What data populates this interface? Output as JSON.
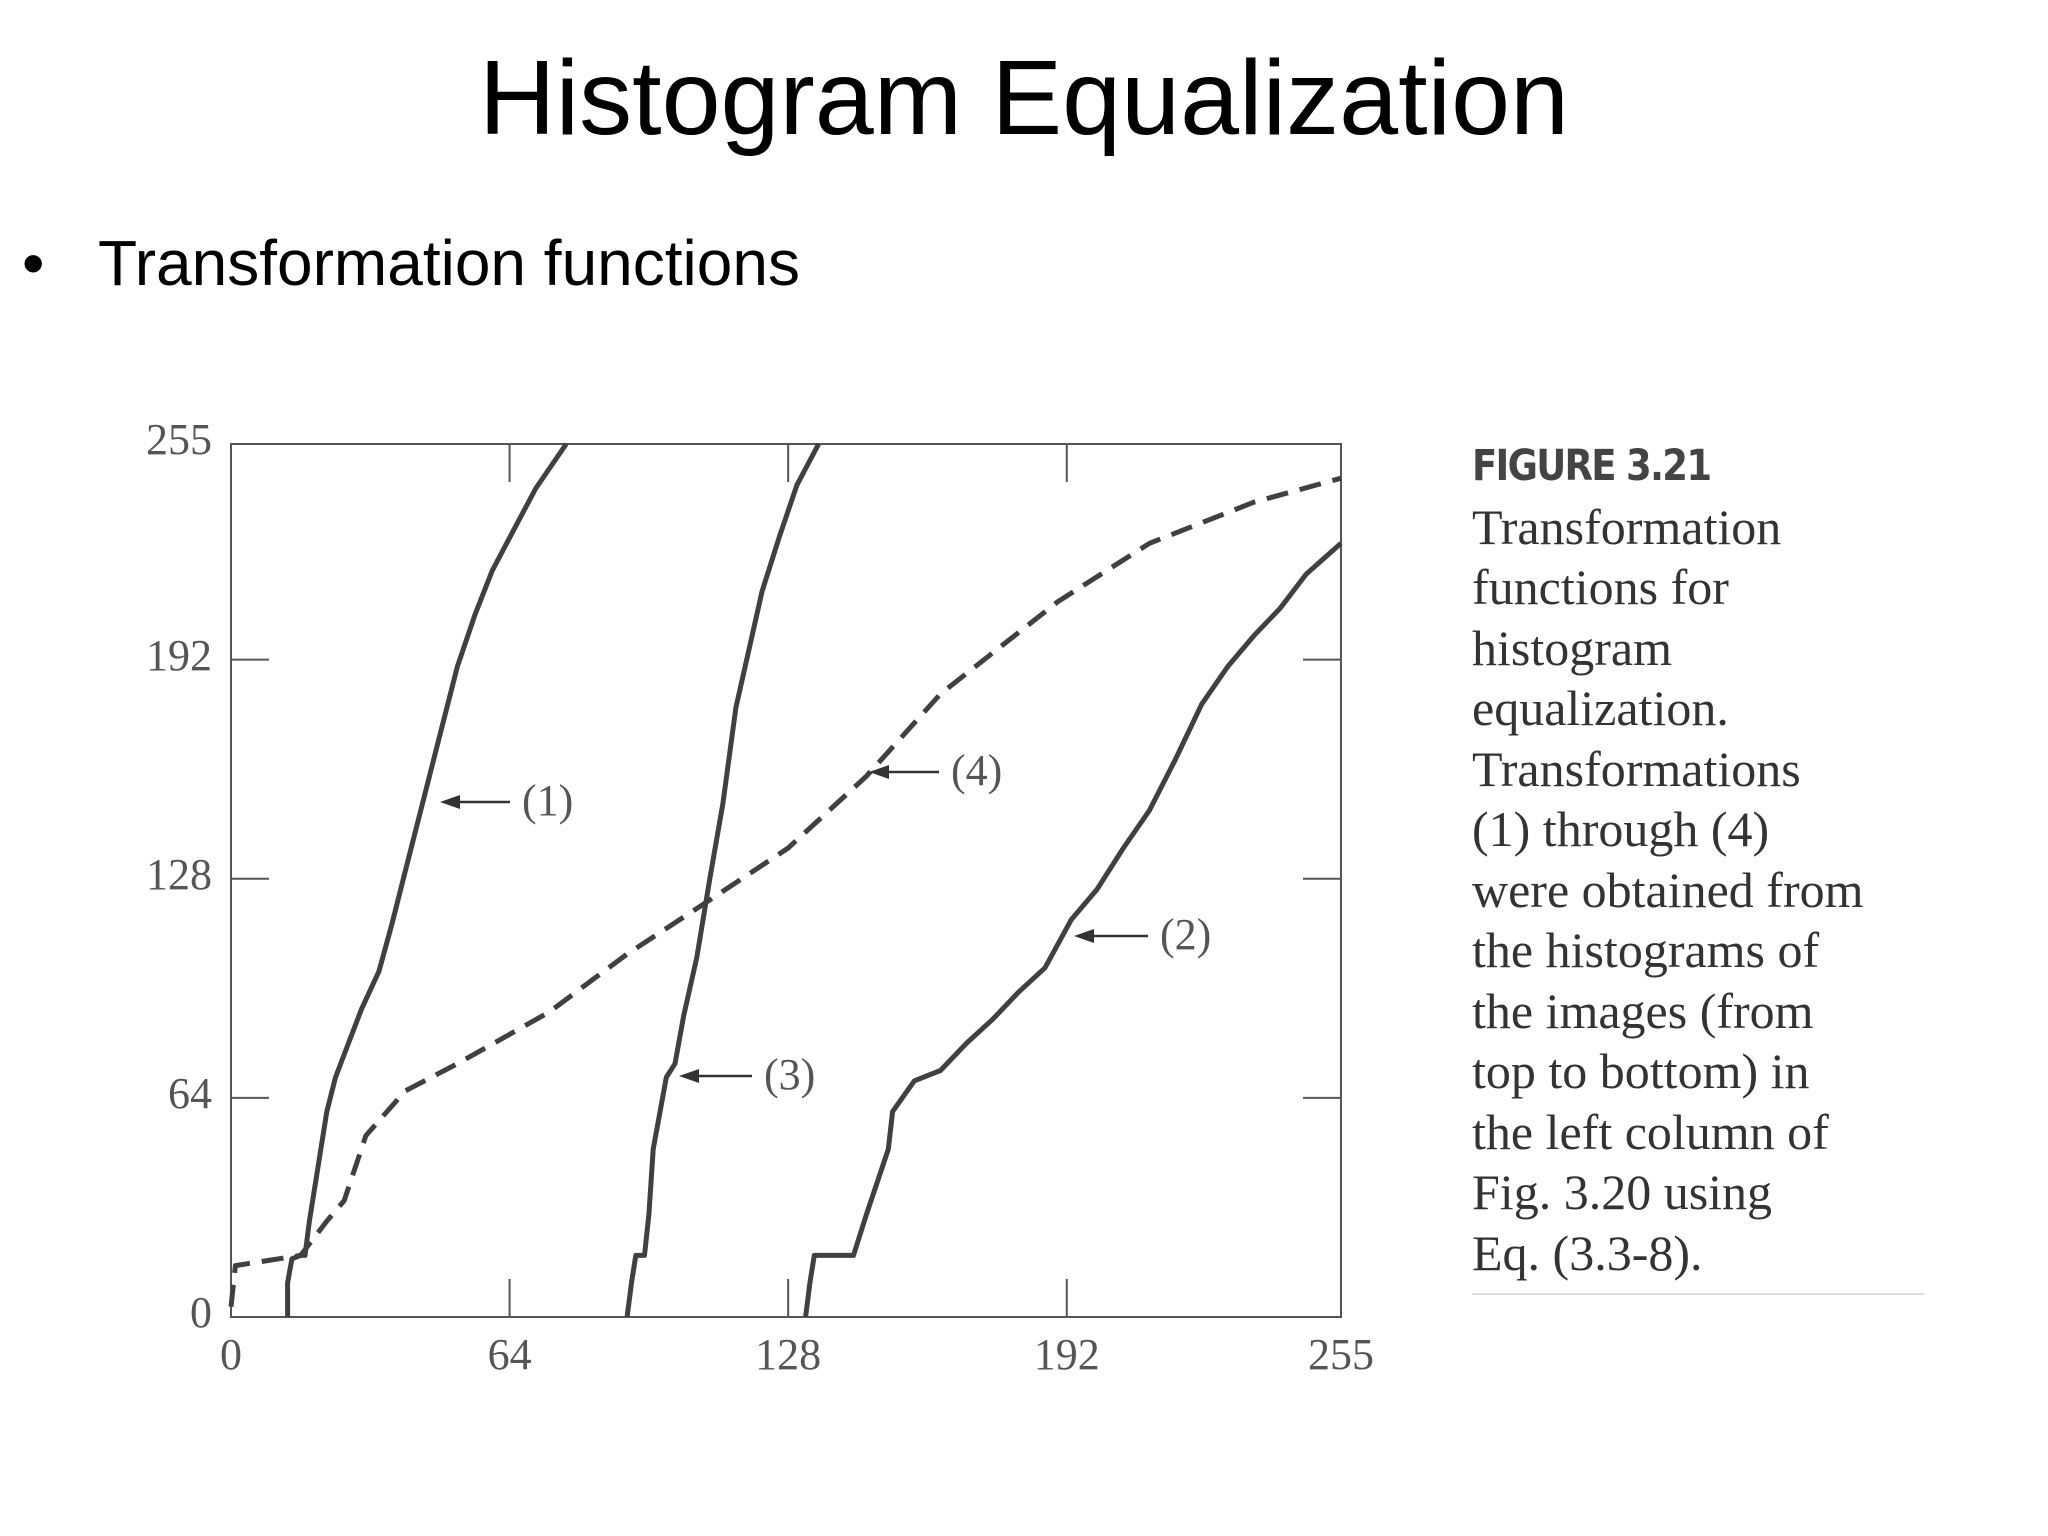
{
  "slide": {
    "title": "Histogram Equalization",
    "bullet": "Transformation functions"
  },
  "caption": {
    "heading": "FIGURE 3.21",
    "lines": [
      "Transformation",
      "functions for",
      "histogram",
      "equalization.",
      "Transformations",
      "(1) through (4)",
      "were obtained from",
      "the histograms of",
      "the images (from",
      "top to bottom) in",
      "the left column of",
      "Fig. 3.20 using",
      "Eq. (3.3-8)."
    ]
  },
  "chart_data": {
    "type": "line",
    "xlim": [
      0,
      255
    ],
    "ylim": [
      0,
      255
    ],
    "xticks": [
      0,
      64,
      128,
      192,
      255
    ],
    "yticks": [
      0,
      64,
      128,
      192,
      255
    ],
    "series": [
      {
        "name": "(1)",
        "color": "#404040",
        "dashed": false,
        "x": [
          13,
          13,
          14,
          16,
          17,
          18,
          20,
          22,
          24,
          27,
          30,
          34,
          37,
          40,
          44,
          48,
          52,
          56,
          60,
          65,
          70,
          77
        ],
        "values": [
          0,
          10,
          17,
          18,
          18,
          28,
          44,
          60,
          70,
          80,
          90,
          101,
          115,
          130,
          150,
          170,
          190,
          205,
          218,
          230,
          242,
          255
        ]
      },
      {
        "name": "(2)",
        "color": "#404040",
        "dashed": false,
        "x": [
          132,
          133,
          134,
          143,
          144,
          146,
          151,
          152,
          157,
          163,
          169,
          175,
          181,
          187,
          193,
          199,
          205,
          211,
          217,
          223,
          229,
          235,
          241,
          247,
          255
        ],
        "values": [
          0,
          10,
          18,
          18,
          22,
          30,
          49,
          60,
          69,
          72,
          80,
          87,
          95,
          102,
          116,
          125,
          137,
          148,
          163,
          179,
          190,
          199,
          207,
          217,
          226
        ]
      },
      {
        "name": "(3)",
        "color": "#404040",
        "dashed": false,
        "x": [
          91,
          92,
          93,
          95,
          96,
          97,
          100,
          102,
          104,
          107,
          110,
          113,
          116,
          119,
          122,
          126,
          130,
          135
        ],
        "values": [
          0,
          10,
          18,
          18,
          30,
          49,
          70,
          74,
          88,
          105,
          128,
          150,
          178,
          195,
          212,
          228,
          243,
          255
        ]
      },
      {
        "name": "(4)",
        "color": "#404040",
        "dashed": true,
        "x": [
          0,
          1,
          16,
          22,
          26,
          31,
          40,
          52,
          73,
          91,
          109,
          128,
          146,
          163,
          190,
          211,
          235,
          255
        ],
        "values": [
          3,
          15,
          18,
          28,
          34,
          53,
          66,
          74,
          89,
          106,
          121,
          137,
          158,
          182,
          209,
          226,
          238,
          245
        ]
      }
    ]
  }
}
